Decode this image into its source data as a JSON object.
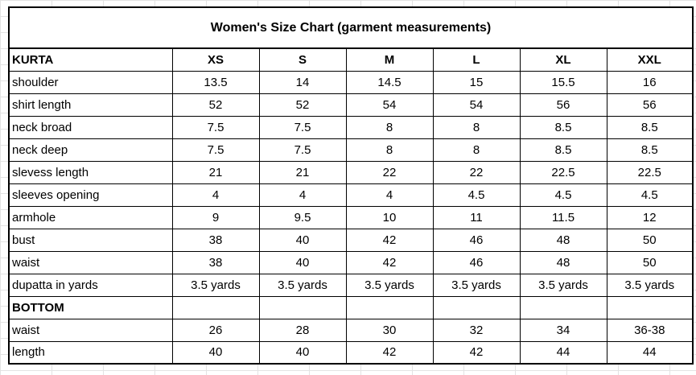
{
  "title": "Women's Size Chart (garment measurements)",
  "kurta": {
    "section_label": "KURTA",
    "sizes": [
      "XS",
      "S",
      "M",
      "L",
      "XL",
      "XXL"
    ],
    "rows": [
      {
        "label": "shoulder",
        "values": [
          "13.5",
          "14",
          "14.5",
          "15",
          "15.5",
          "16"
        ]
      },
      {
        "label": "shirt length",
        "values": [
          "52",
          "52",
          "54",
          "54",
          "56",
          "56"
        ]
      },
      {
        "label": "neck broad",
        "values": [
          "7.5",
          "7.5",
          "8",
          "8",
          "8.5",
          "8.5"
        ]
      },
      {
        "label": "neck deep",
        "values": [
          "7.5",
          "7.5",
          "8",
          "8",
          "8.5",
          "8.5"
        ]
      },
      {
        "label": "slevess length",
        "values": [
          "21",
          "21",
          "22",
          "22",
          "22.5",
          "22.5"
        ]
      },
      {
        "label": "sleeves opening",
        "values": [
          "4",
          "4",
          "4",
          "4.5",
          "4.5",
          "4.5"
        ]
      },
      {
        "label": "armhole",
        "values": [
          "9",
          "9.5",
          "10",
          "11",
          "11.5",
          "12"
        ]
      },
      {
        "label": "bust",
        "values": [
          "38",
          "40",
          "42",
          "46",
          "48",
          "50"
        ]
      },
      {
        "label": "waist",
        "values": [
          "38",
          "40",
          "42",
          "46",
          "48",
          "50"
        ]
      },
      {
        "label": "dupatta in yards",
        "values": [
          "3.5 yards",
          "3.5 yards",
          "3.5 yards",
          "3.5 yards",
          "3.5 yards",
          "3.5 yards"
        ]
      }
    ]
  },
  "bottom": {
    "section_label": "BOTTOM",
    "rows": [
      {
        "label": "waist",
        "values": [
          "26",
          "28",
          "30",
          "32",
          "34",
          "36-38"
        ]
      },
      {
        "label": "length",
        "values": [
          "40",
          "40",
          "42",
          "42",
          "44",
          "44"
        ]
      }
    ]
  }
}
